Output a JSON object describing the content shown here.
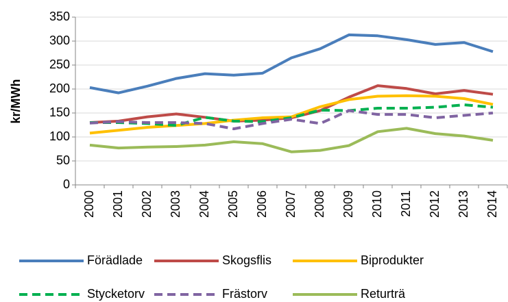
{
  "chart_data": {
    "type": "line",
    "ylabel": "kr/MWh",
    "categories": [
      "2000",
      "2001",
      "2002",
      "2003",
      "2004",
      "2005",
      "2006",
      "2007",
      "2008",
      "2009",
      "2010",
      "2011",
      "2012",
      "2013",
      "2014"
    ],
    "series": [
      {
        "name": "Förädlade",
        "color": "#4a7ebb",
        "dashed": false,
        "values": [
          203,
          192,
          206,
          222,
          232,
          229,
          233,
          265,
          284,
          313,
          311,
          303,
          293,
          297,
          278
        ]
      },
      {
        "name": "Skogsflis",
        "color": "#be4b48",
        "dashed": false,
        "values": [
          130,
          133,
          142,
          148,
          141,
          133,
          135,
          140,
          155,
          183,
          207,
          201,
          190,
          197,
          189
        ]
      },
      {
        "name": "Biprodukter",
        "color": "#ffc000",
        "dashed": false,
        "values": [
          108,
          114,
          120,
          124,
          128,
          135,
          140,
          142,
          163,
          178,
          185,
          186,
          185,
          180,
          168
        ]
      },
      {
        "name": "Stycketorv",
        "color": "#00b050",
        "dashed": true,
        "values": [
          130,
          130,
          128,
          124,
          141,
          133,
          132,
          140,
          156,
          155,
          160,
          160,
          162,
          167,
          162
        ]
      },
      {
        "name": "Frästorv",
        "color": "#8064a2",
        "dashed": true,
        "values": [
          129,
          132,
          130,
          130,
          128,
          117,
          128,
          137,
          128,
          155,
          147,
          147,
          140,
          145,
          150
        ]
      },
      {
        "name": "Returträ",
        "color": "#9bbb59",
        "dashed": false,
        "values": [
          83,
          77,
          79,
          80,
          83,
          90,
          86,
          69,
          72,
          82,
          111,
          118,
          107,
          102,
          93
        ]
      }
    ],
    "ylim": [
      0,
      350
    ],
    "yticks": [
      0,
      50,
      100,
      150,
      200,
      250,
      300,
      350
    ],
    "grid": true
  }
}
